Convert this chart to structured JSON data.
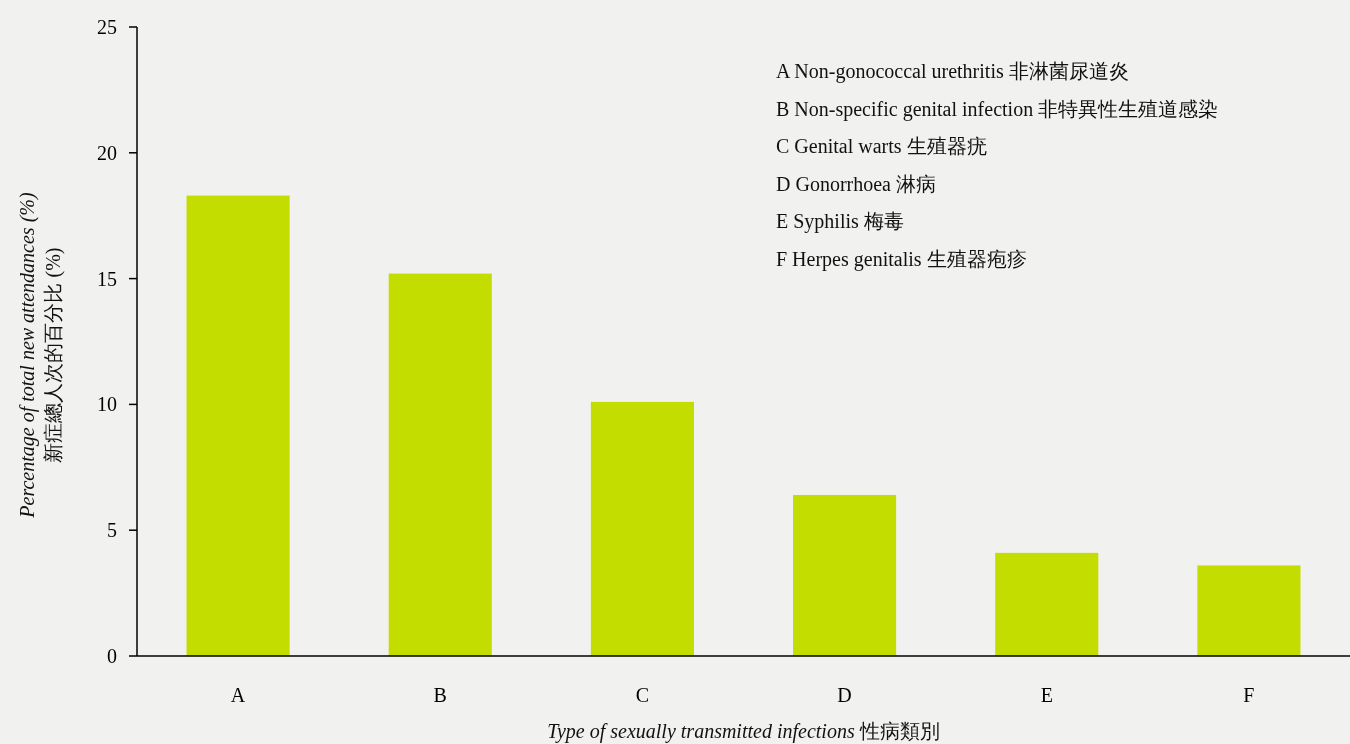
{
  "chart_data": {
    "type": "bar",
    "categories": [
      "A",
      "B",
      "C",
      "D",
      "E",
      "F"
    ],
    "values": [
      18.3,
      15.2,
      10.1,
      6.4,
      4.1,
      3.6
    ],
    "color": "#c3dd00",
    "ylim": [
      0,
      25
    ],
    "yticks": [
      0,
      5,
      10,
      15,
      20,
      25
    ],
    "xlabel": "*Type of sexually transmitted infections* 性病類別",
    "ylabel": "*Percentage of total new attendances (%)* 新症總人次的百分比 (%)",
    "annotations": [
      "A  Non-gonococcal urethritis 非淋菌尿道炎",
      "B  Non-specific genital infection 非特異性生殖道感染",
      "C  Genital warts 生殖器疣",
      "D  Gonorrhoea 淋病",
      "E  Syphilis 梅毒",
      "F  Herpes genitalis 生殖器疱疹"
    ]
  }
}
